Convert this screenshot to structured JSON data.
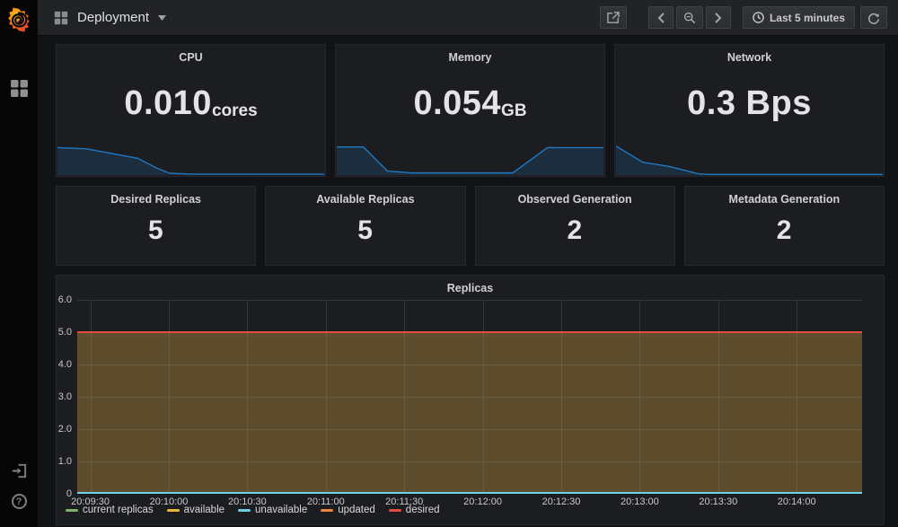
{
  "navbar": {
    "title": "Deployment",
    "time_range": "Last 5 minutes"
  },
  "icons": {
    "sidebar": [
      "grafana-logo",
      "dashboards-grid",
      "sign-in",
      "help"
    ],
    "navbar": [
      "dashboard-grid",
      "chevron-down",
      "share",
      "chevron-left",
      "zoom-out-magnifier",
      "chevron-right",
      "clock",
      "refresh"
    ]
  },
  "stat_panels": [
    {
      "title": "CPU",
      "value": "0.010",
      "unit": "cores",
      "spark": [
        [
          0,
          0.9
        ],
        [
          0.11,
          0.86
        ],
        [
          0.3,
          0.55
        ],
        [
          0.37,
          0.24
        ],
        [
          0.42,
          0.06
        ],
        [
          0.5,
          0.03
        ],
        [
          1,
          0.03
        ]
      ]
    },
    {
      "title": "Memory",
      "value": "0.054",
      "unit": "GB",
      "spark": [
        [
          0,
          0.92
        ],
        [
          0.1,
          0.92
        ],
        [
          0.19,
          0.13
        ],
        [
          0.28,
          0.07
        ],
        [
          0.66,
          0.07
        ],
        [
          0.79,
          0.9
        ],
        [
          1,
          0.9
        ]
      ]
    },
    {
      "title": "Network",
      "value": "0.3 Bps",
      "unit": "",
      "spark": [
        [
          0,
          0.95
        ],
        [
          0.1,
          0.42
        ],
        [
          0.2,
          0.28
        ],
        [
          0.31,
          0.04
        ],
        [
          0.35,
          0.02
        ],
        [
          1,
          0.02
        ]
      ]
    }
  ],
  "replica_stats": [
    {
      "title": "Desired Replicas",
      "value": "5"
    },
    {
      "title": "Available Replicas",
      "value": "5"
    },
    {
      "title": "Observed Generation",
      "value": "2"
    },
    {
      "title": "Metadata Generation",
      "value": "2"
    }
  ],
  "chart_data": {
    "type": "line",
    "title": "Replicas",
    "ylim": [
      0,
      6
    ],
    "grid": true,
    "fill_alpha": 0.14,
    "legend_position": "bottom-left",
    "y_ticks": [
      {
        "label": "6.0",
        "value": 6
      },
      {
        "label": "5.0",
        "value": 5
      },
      {
        "label": "4.0",
        "value": 4
      },
      {
        "label": "3.0",
        "value": 3
      },
      {
        "label": "2.0",
        "value": 2
      },
      {
        "label": "1.0",
        "value": 1
      },
      {
        "label": "0",
        "value": 0
      }
    ],
    "x_ticks": [
      {
        "label": "20:09:30",
        "f": 0.0167
      },
      {
        "label": "20:10:00",
        "f": 0.1167
      },
      {
        "label": "20:10:30",
        "f": 0.2167
      },
      {
        "label": "20:11:00",
        "f": 0.3167
      },
      {
        "label": "20:11:30",
        "f": 0.4167
      },
      {
        "label": "20:12:00",
        "f": 0.5167
      },
      {
        "label": "20:12:30",
        "f": 0.6167
      },
      {
        "label": "20:13:00",
        "f": 0.7167
      },
      {
        "label": "20:13:30",
        "f": 0.8167
      },
      {
        "label": "20:14:00",
        "f": 0.9167
      }
    ],
    "series": [
      {
        "name": "current replicas",
        "color": "#7EB26D",
        "value": 5,
        "fill": true
      },
      {
        "name": "available",
        "color": "#EAB839",
        "value": 5,
        "fill": true
      },
      {
        "name": "unavailable",
        "color": "#6ED0E0",
        "value": 0,
        "fill": false
      },
      {
        "name": "updated",
        "color": "#EF843C",
        "value": 5,
        "fill": true
      },
      {
        "name": "desired",
        "color": "#E24D42",
        "value": 5,
        "fill": false
      }
    ]
  },
  "colors": {
    "spark_line": "#1F78C1",
    "spark_fill": "rgba(31,120,193,0.18)",
    "panel_bg": "#1c1d21",
    "page_bg": "#121316",
    "grid_line": "#33363c"
  }
}
